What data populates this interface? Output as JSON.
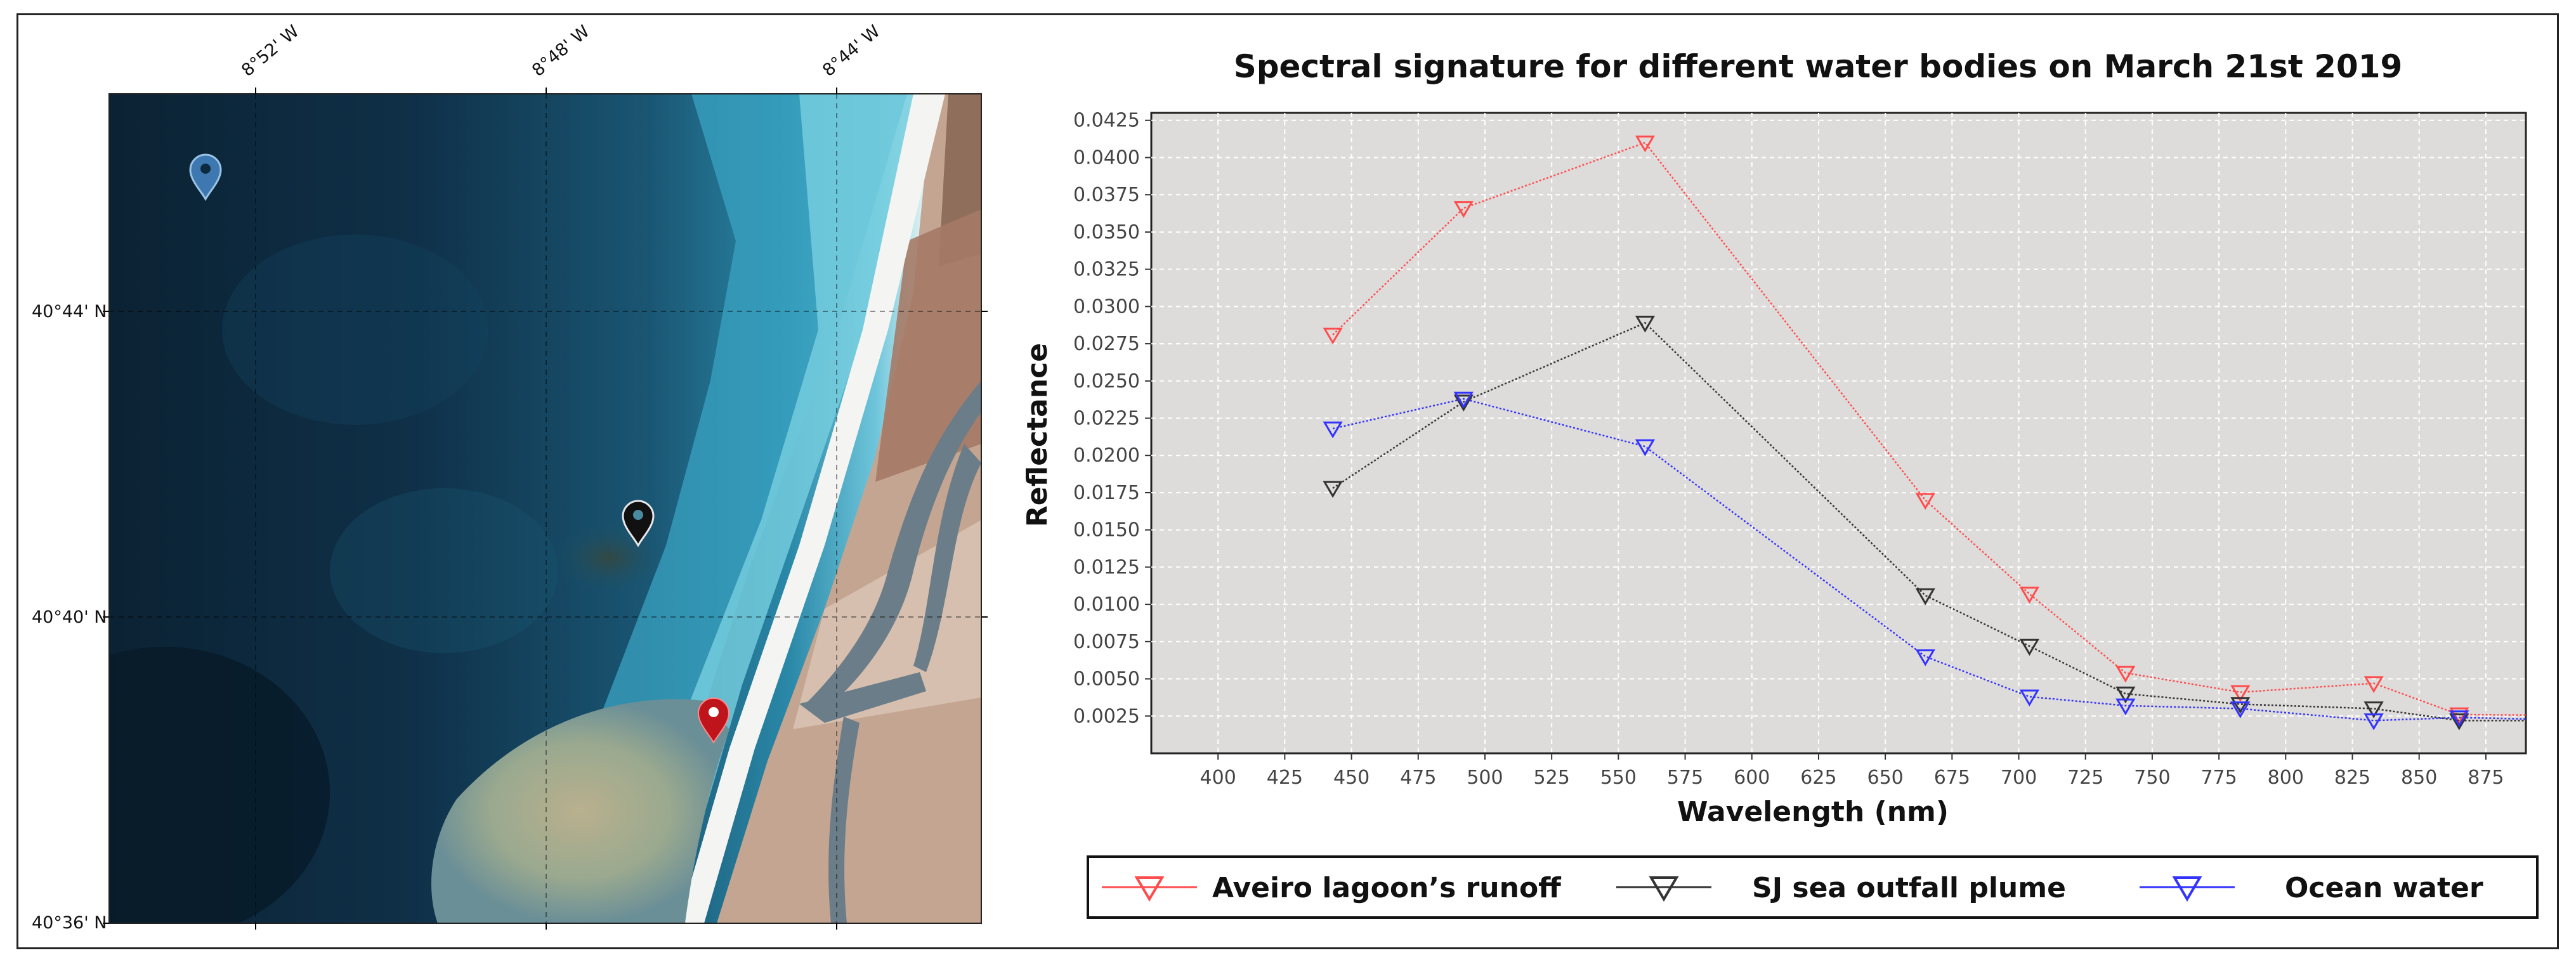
{
  "map": {
    "lon_ticks": [
      "8°52' W",
      "8°48' W",
      "8°44' W"
    ],
    "lat_ticks": [
      "40°44' N",
      "40°40' N",
      "40°36' N"
    ],
    "markers": [
      {
        "name": "ocean-water-marker",
        "color": "#3d78b0"
      },
      {
        "name": "sj-outfall-marker",
        "color": "#111111"
      },
      {
        "name": "aveiro-runoff-marker",
        "color": "#c0141c"
      }
    ]
  },
  "chart_data": {
    "type": "line",
    "title": "Spectral signature for different water bodies on March 21st 2019",
    "xlabel": "Wavelength (nm)",
    "ylabel": "Reflectance",
    "xlim": [
      375,
      890
    ],
    "ylim": [
      0.0,
      0.043
    ],
    "x_ticks": [
      400,
      425,
      450,
      475,
      500,
      525,
      550,
      575,
      600,
      625,
      650,
      675,
      700,
      725,
      750,
      775,
      800,
      825,
      850,
      875
    ],
    "y_ticks": [
      0.0025,
      0.005,
      0.0075,
      0.01,
      0.0125,
      0.015,
      0.0175,
      0.02,
      0.0225,
      0.025,
      0.0275,
      0.03,
      0.0325,
      0.035,
      0.0375,
      0.04,
      0.0425
    ],
    "y_tick_labels": [
      "0.0025",
      "0.0050",
      "0.0075",
      "0.0100",
      "0.0125",
      "0.0150",
      "0.0175",
      "0.0200",
      "0.0225",
      "0.0250",
      "0.0275",
      "0.0300",
      "0.0325",
      "0.0350",
      "0.0375",
      "0.0400",
      "0.0425"
    ],
    "grid": true,
    "legend_position": "bottom",
    "series": [
      {
        "name": "Aveiro lagoon’s runoff",
        "color": "#ff4d4d",
        "x": [
          443,
          492,
          560,
          665,
          704,
          740,
          783,
          833,
          865,
          945
        ],
        "y": [
          0.0281,
          0.0366,
          0.041,
          0.017,
          0.0107,
          0.0054,
          0.0041,
          0.0047,
          0.0026,
          0.0025
        ]
      },
      {
        "name": "SJ sea outfall plume",
        "color": "#333333",
        "x": [
          443,
          492,
          560,
          665,
          704,
          740,
          783,
          833,
          865,
          945
        ],
        "y": [
          0.0178,
          0.0236,
          0.0289,
          0.0106,
          0.0072,
          0.004,
          0.0033,
          0.003,
          0.0022,
          0.0022
        ]
      },
      {
        "name": "Ocean water",
        "color": "#3333ff",
        "x": [
          443,
          492,
          560,
          665,
          704,
          740,
          783,
          833,
          865,
          945
        ],
        "y": [
          0.0218,
          0.0238,
          0.0206,
          0.0065,
          0.0038,
          0.0032,
          0.003,
          0.0022,
          0.0024,
          0.0021
        ]
      }
    ]
  }
}
